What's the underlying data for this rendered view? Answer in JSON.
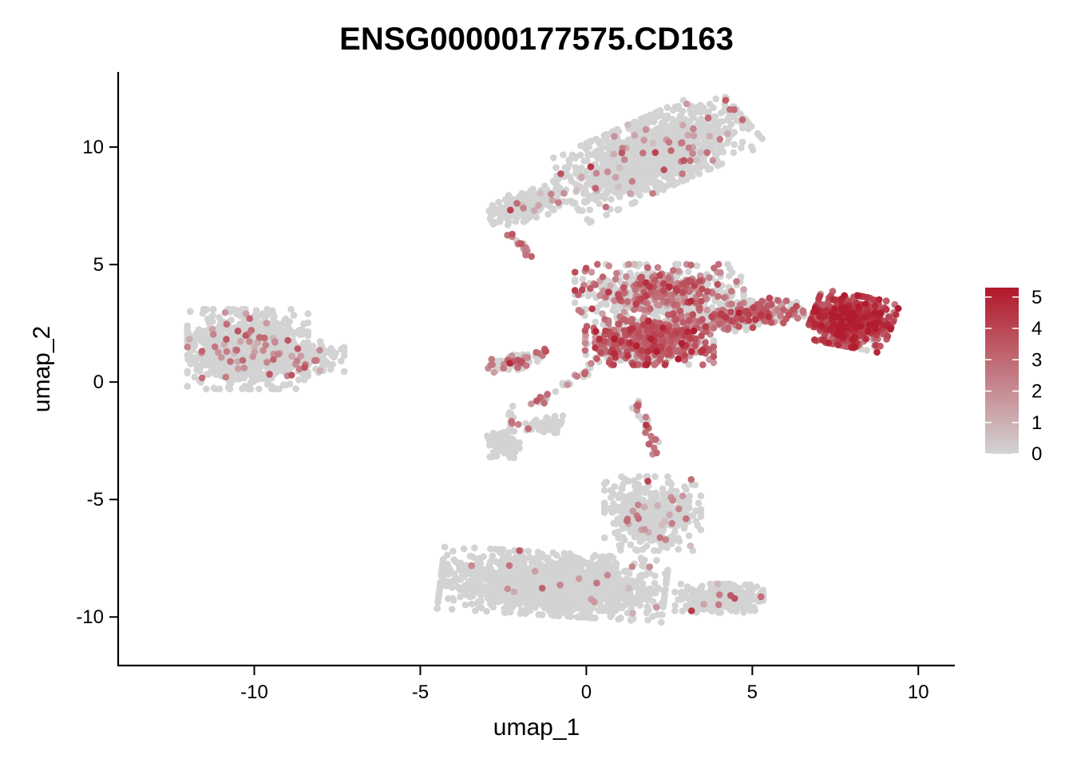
{
  "chart_data": {
    "type": "scatter",
    "title": "ENSG00000177575.CD163",
    "xlabel": "umap_1",
    "ylabel": "umap_2",
    "xlim": [
      -14.1,
      11.1
    ],
    "ylim": [
      -12.1,
      13.2
    ],
    "x_ticks": [
      "-10",
      "-5",
      "0",
      "5",
      "10"
    ],
    "x_tick_values": [
      -10,
      -5,
      0,
      5,
      10
    ],
    "y_ticks": [
      "-10",
      "-5",
      "0",
      "5",
      "10"
    ],
    "y_tick_values": [
      -10,
      -5,
      0,
      5,
      10
    ],
    "grid": false,
    "color_scale": {
      "low": "#d3d3d3",
      "high": "#b2182b",
      "min": 0,
      "max": 5.3,
      "ticks": [
        "0",
        "1",
        "2",
        "3",
        "4",
        "5"
      ],
      "tick_values": [
        0,
        1,
        2,
        3,
        4,
        5
      ],
      "legend_position": "right"
    },
    "clusters": [
      {
        "cx": 2.0,
        "cy": 9.7,
        "sx": 2.6,
        "sy": 1.2,
        "rot": 32,
        "n": 1300,
        "expr_frac": 0.05,
        "expr_mean": 2.0
      },
      {
        "cx": -1.8,
        "cy": 7.5,
        "sx": 1.0,
        "sy": 0.5,
        "rot": 20,
        "n": 220,
        "expr_frac": 0.06,
        "expr_mean": 2.0
      },
      {
        "cx": 2.2,
        "cy": 3.8,
        "sx": 2.1,
        "sy": 1.0,
        "rot": 0,
        "n": 650,
        "expr_frac": 0.3,
        "expr_mean": 2.5
      },
      {
        "cx": 1.9,
        "cy": 1.7,
        "sx": 1.6,
        "sy": 0.8,
        "rot": 0,
        "n": 650,
        "expr_frac": 0.62,
        "expr_mean": 3.0
      },
      {
        "cx": 4.6,
        "cy": 2.8,
        "sx": 1.6,
        "sy": 0.5,
        "rot": 10,
        "n": 320,
        "expr_frac": 0.5,
        "expr_mean": 2.8
      },
      {
        "cx": 8.0,
        "cy": 2.6,
        "sx": 1.0,
        "sy": 0.9,
        "rot": -15,
        "n": 750,
        "expr_frac": 0.85,
        "expr_mean": 3.8
      },
      {
        "cx": -10.2,
        "cy": 1.4,
        "sx": 1.5,
        "sy": 1.4,
        "rot": 0,
        "n": 950,
        "expr_frac": 0.05,
        "expr_mean": 2.0
      },
      {
        "cx": -8.5,
        "cy": 1.0,
        "sx": 1.0,
        "sy": 0.6,
        "rot": 0,
        "n": 180,
        "expr_frac": 0.08,
        "expr_mean": 2.0
      },
      {
        "cx": -2.1,
        "cy": 0.9,
        "sx": 0.8,
        "sy": 0.3,
        "rot": 20,
        "n": 70,
        "expr_frac": 0.4,
        "expr_mean": 2.5
      },
      {
        "cx": -2.5,
        "cy": -2.7,
        "sx": 0.4,
        "sy": 0.5,
        "rot": 0,
        "n": 110,
        "expr_frac": 0.03,
        "expr_mean": 2.0
      },
      {
        "cx": -1.2,
        "cy": -1.8,
        "sx": 0.6,
        "sy": 0.3,
        "rot": 0,
        "n": 50,
        "expr_frac": 0.05,
        "expr_mean": 2.0
      },
      {
        "cx": -1.0,
        "cy": -8.6,
        "sx": 2.8,
        "sy": 1.1,
        "rot": -5,
        "n": 1600,
        "expr_frac": 0.01,
        "expr_mean": 2.0
      },
      {
        "cx": 2.0,
        "cy": -5.6,
        "sx": 1.2,
        "sy": 1.3,
        "rot": 0,
        "n": 450,
        "expr_frac": 0.07,
        "expr_mean": 2.0
      },
      {
        "cx": 4.0,
        "cy": -9.2,
        "sx": 1.1,
        "sy": 0.5,
        "rot": 0,
        "n": 280,
        "expr_frac": 0.03,
        "expr_mean": 2.0
      }
    ],
    "bridges": [
      {
        "x1": -1.6,
        "y1": -1.0,
        "x2": 0.4,
        "y2": 0.8,
        "n": 30,
        "expr_frac": 0.5
      },
      {
        "x1": 1.5,
        "y1": -0.8,
        "x2": 2.1,
        "y2": -3.0,
        "n": 25,
        "expr_frac": 0.5
      },
      {
        "x1": -2.4,
        "y1": -1.0,
        "x2": -2.2,
        "y2": -2.0,
        "n": 12,
        "expr_frac": 0.6
      },
      {
        "x1": -2.3,
        "y1": 6.3,
        "x2": -1.6,
        "y2": 5.3,
        "n": 14,
        "expr_frac": 0.8
      }
    ]
  }
}
